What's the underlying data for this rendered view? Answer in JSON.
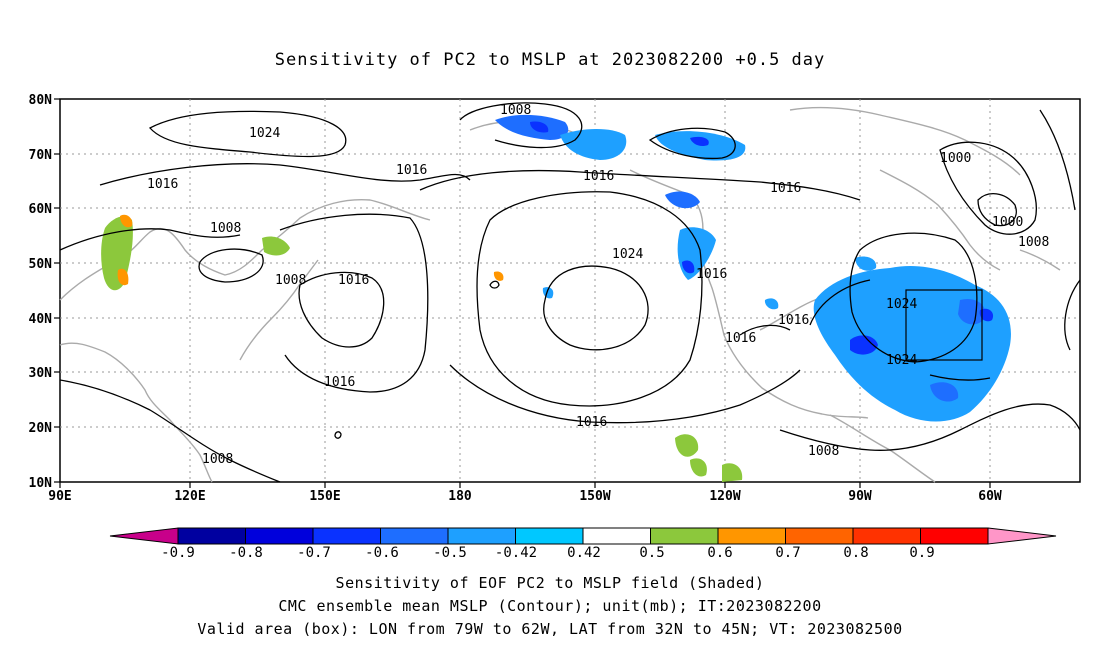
{
  "title": "Sensitivity of PC2 to MSLP at 2023082200 +0.5 day",
  "map": {
    "lon_labels": [
      "90E",
      "120E",
      "150E",
      "180",
      "150W",
      "120W",
      "90W",
      "60W"
    ],
    "lat_labels": [
      "80N",
      "70N",
      "60N",
      "50N",
      "40N",
      "30N",
      "20N",
      "10N"
    ],
    "region": {
      "lon_min": 90,
      "lon_max": 325,
      "lat_min": 10,
      "lat_max": 80
    },
    "contour_labels": [
      "1024",
      "1016",
      "1008",
      "1008",
      "1016",
      "1016",
      "1024",
      "1016",
      "1008",
      "1016",
      "1016",
      "1024",
      "1016",
      "1000",
      "1000",
      "1008",
      "1024",
      "1016",
      "1016",
      "1016",
      "1008",
      "1008"
    ],
    "valid_box": {
      "lon": [
        -79,
        -62
      ],
      "lat": [
        32,
        45
      ]
    }
  },
  "colorbar": {
    "labels": [
      "-0.9",
      "-0.8",
      "-0.7",
      "-0.6",
      "-0.5",
      "-0.42",
      "0.42",
      "0.5",
      "0.6",
      "0.7",
      "0.8",
      "0.9"
    ],
    "colors": [
      "#c8008a",
      "#0000a0",
      "#0000dc",
      "#0a32ff",
      "#1e6eff",
      "#1ea0ff",
      "#00c8ff",
      "#ffffff",
      "#8cc83c",
      "#ff9600",
      "#ff6400",
      "#ff3200",
      "#ff0000",
      "#ff96c8"
    ]
  },
  "captions": [
    "Sensitivity of EOF PC2 to MSLP field (Shaded)",
    "CMC ensemble mean MSLP (Contour); unit(mb); IT:2023082200",
    "Valid area (box): LON from 79W to 62W, LAT from 32N to 45N; VT: 2023082500"
  ]
}
